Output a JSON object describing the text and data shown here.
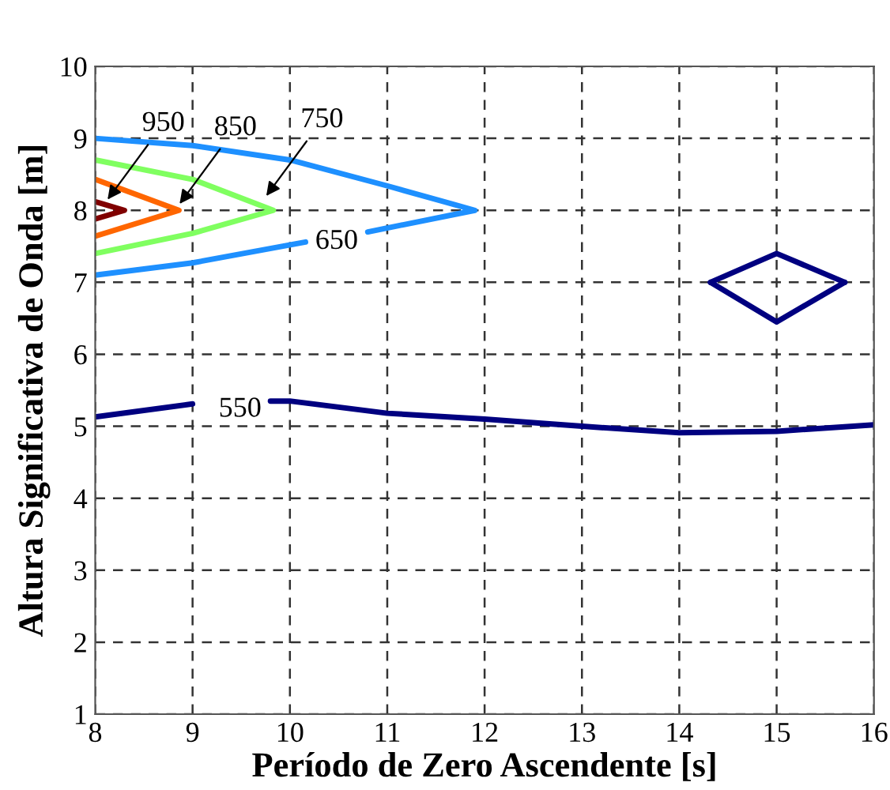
{
  "chart_data": {
    "type": "line",
    "xlabel": "Período de Zero Ascendente [s]",
    "ylabel": "Altura Significativa de Onda [m]",
    "series": [
      {
        "color": "#000080",
        "x": [
          8,
          9,
          9.3,
          9.8,
          10,
          11,
          12,
          13,
          14,
          15,
          16
        ],
        "values": [
          5.13,
          5.31,
          null,
          5.35,
          5.35,
          5.18,
          5.1,
          5.0,
          4.91,
          4.93,
          5.02
        ]
      },
      {
        "color": "#000080",
        "x": [
          14.32,
          15.0,
          15.7
        ],
        "values": [
          7.0,
          7.4,
          7.0
        ]
      },
      {
        "color": "#000080",
        "x": [
          14.32,
          15.0,
          15.7
        ],
        "values": [
          7.0,
          6.45,
          7.0
        ]
      },
      {
        "color": "#1e90ff",
        "x": [
          8,
          9,
          10,
          11,
          11.9,
          10.8,
          10.5,
          10.16,
          9,
          8
        ],
        "values": [
          9.0,
          8.9,
          8.7,
          8.34,
          8.0,
          7.7,
          null,
          7.56,
          7.27,
          7.1
        ]
      },
      {
        "color": "#80ff60",
        "x": [
          8,
          9,
          9.83,
          9,
          8
        ],
        "values": [
          8.7,
          8.43,
          8.0,
          7.68,
          7.4
        ]
      },
      {
        "color": "#ff6600",
        "x": [
          8,
          8.86,
          8
        ],
        "values": [
          8.43,
          8.0,
          7.64
        ]
      },
      {
        "color": "#800000",
        "x": [
          8,
          8.3,
          8
        ],
        "values": [
          8.12,
          8.0,
          7.88
        ]
      }
    ],
    "annotations": [
      "550",
      "650",
      {
        "text": "750",
        "x": 9.73,
        "y": 8.15
      },
      {
        "text": "850",
        "x": 8.84,
        "y": 8.04
      },
      {
        "text": "950",
        "x": 8.1,
        "y": 8.1
      }
    ],
    "xlim": [
      8,
      16
    ],
    "ylim": [
      1,
      10
    ],
    "xticks": [
      8,
      9,
      10,
      11,
      12,
      13,
      14,
      15,
      16
    ],
    "yticks": [
      1,
      2,
      3,
      4,
      5,
      6,
      7,
      8,
      9,
      10
    ],
    "grid": true
  }
}
